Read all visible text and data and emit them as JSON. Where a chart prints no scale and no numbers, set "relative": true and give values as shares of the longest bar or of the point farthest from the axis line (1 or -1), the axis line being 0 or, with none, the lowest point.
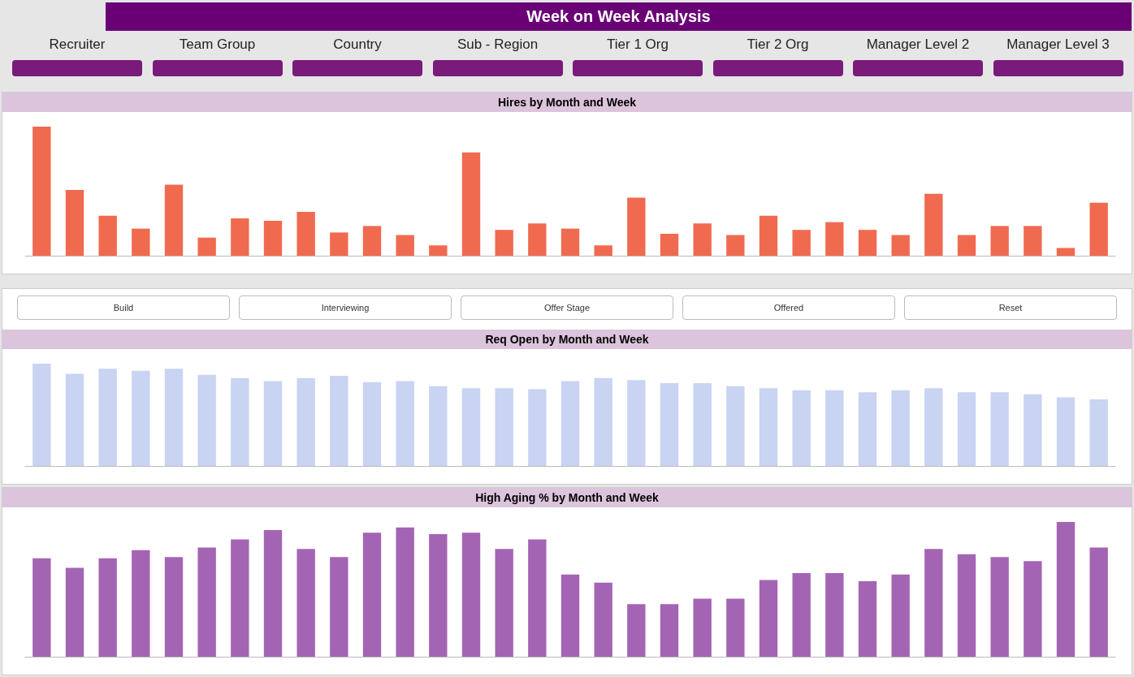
{
  "chart_data": [
    {
      "type": "other",
      "title": "Week on Week Analysis",
      "annotations": [
        "Recruiter",
        "Team Group",
        "Country",
        "Sub - Region",
        "Tier 1 Org",
        "Tier 2 Org",
        "Manager Level 2",
        "Manager Level 3",
        "Build",
        "Interviewing",
        "Offer Stage",
        "Offered",
        "Reset"
      ]
    },
    {
      "type": "bar",
      "title": "Hires by Month and Week",
      "relative": true,
      "color": "#f06a50",
      "categories": [
        null,
        null,
        null,
        null,
        null,
        null,
        null,
        null,
        null,
        null,
        null,
        null,
        null,
        null,
        null,
        null,
        null,
        null,
        null,
        null,
        null,
        null,
        null,
        null,
        null,
        null,
        null,
        null,
        null,
        null,
        null,
        null,
        null
      ],
      "values": [
        1,
        0.51,
        0.31,
        0.21,
        0.55,
        0.14,
        0.29,
        0.27,
        0.34,
        0.18,
        0.23,
        0.16,
        0.08,
        0.8,
        0.2,
        0.25,
        0.21,
        0.08,
        0.45,
        0.17,
        0.25,
        0.16,
        0.31,
        0.2,
        0.26,
        0.2,
        0.16,
        0.48,
        0.16,
        0.23,
        0.23,
        0.06,
        0.41
      ]
    },
    {
      "type": "bar",
      "title": "Req Open by Month and Week",
      "relative": true,
      "color": "#c9d3f2",
      "categories": [
        null,
        null,
        null,
        null,
        null,
        null,
        null,
        null,
        null,
        null,
        null,
        null,
        null,
        null,
        null,
        null,
        null,
        null,
        null,
        null,
        null,
        null,
        null,
        null,
        null,
        null,
        null,
        null,
        null,
        null,
        null,
        null,
        null
      ],
      "values": [
        1,
        0.9,
        0.95,
        0.93,
        0.95,
        0.89,
        0.86,
        0.83,
        0.86,
        0.88,
        0.82,
        0.83,
        0.78,
        0.76,
        0.76,
        0.75,
        0.83,
        0.86,
        0.84,
        0.81,
        0.81,
        0.78,
        0.76,
        0.74,
        0.74,
        0.72,
        0.74,
        0.76,
        0.72,
        0.72,
        0.7,
        0.67,
        0.65
      ]
    },
    {
      "type": "bar",
      "title": "High Aging % by Month and Week",
      "relative": true,
      "color": "#a464b4",
      "categories": [
        null,
        null,
        null,
        null,
        null,
        null,
        null,
        null,
        null,
        null,
        null,
        null,
        null,
        null,
        null,
        null,
        null,
        null,
        null,
        null,
        null,
        null,
        null,
        null,
        null,
        null,
        null,
        null,
        null,
        null,
        null,
        null,
        null
      ],
      "values": [
        0.73,
        0.66,
        0.73,
        0.79,
        0.74,
        0.81,
        0.87,
        0.94,
        0.8,
        0.74,
        0.92,
        0.96,
        0.91,
        0.92,
        0.8,
        0.87,
        0.61,
        0.55,
        0.39,
        0.39,
        0.43,
        0.43,
        0.57,
        0.62,
        0.62,
        0.56,
        0.61,
        0.8,
        0.76,
        0.74,
        0.71,
        1,
        0.81
      ]
    }
  ]
}
